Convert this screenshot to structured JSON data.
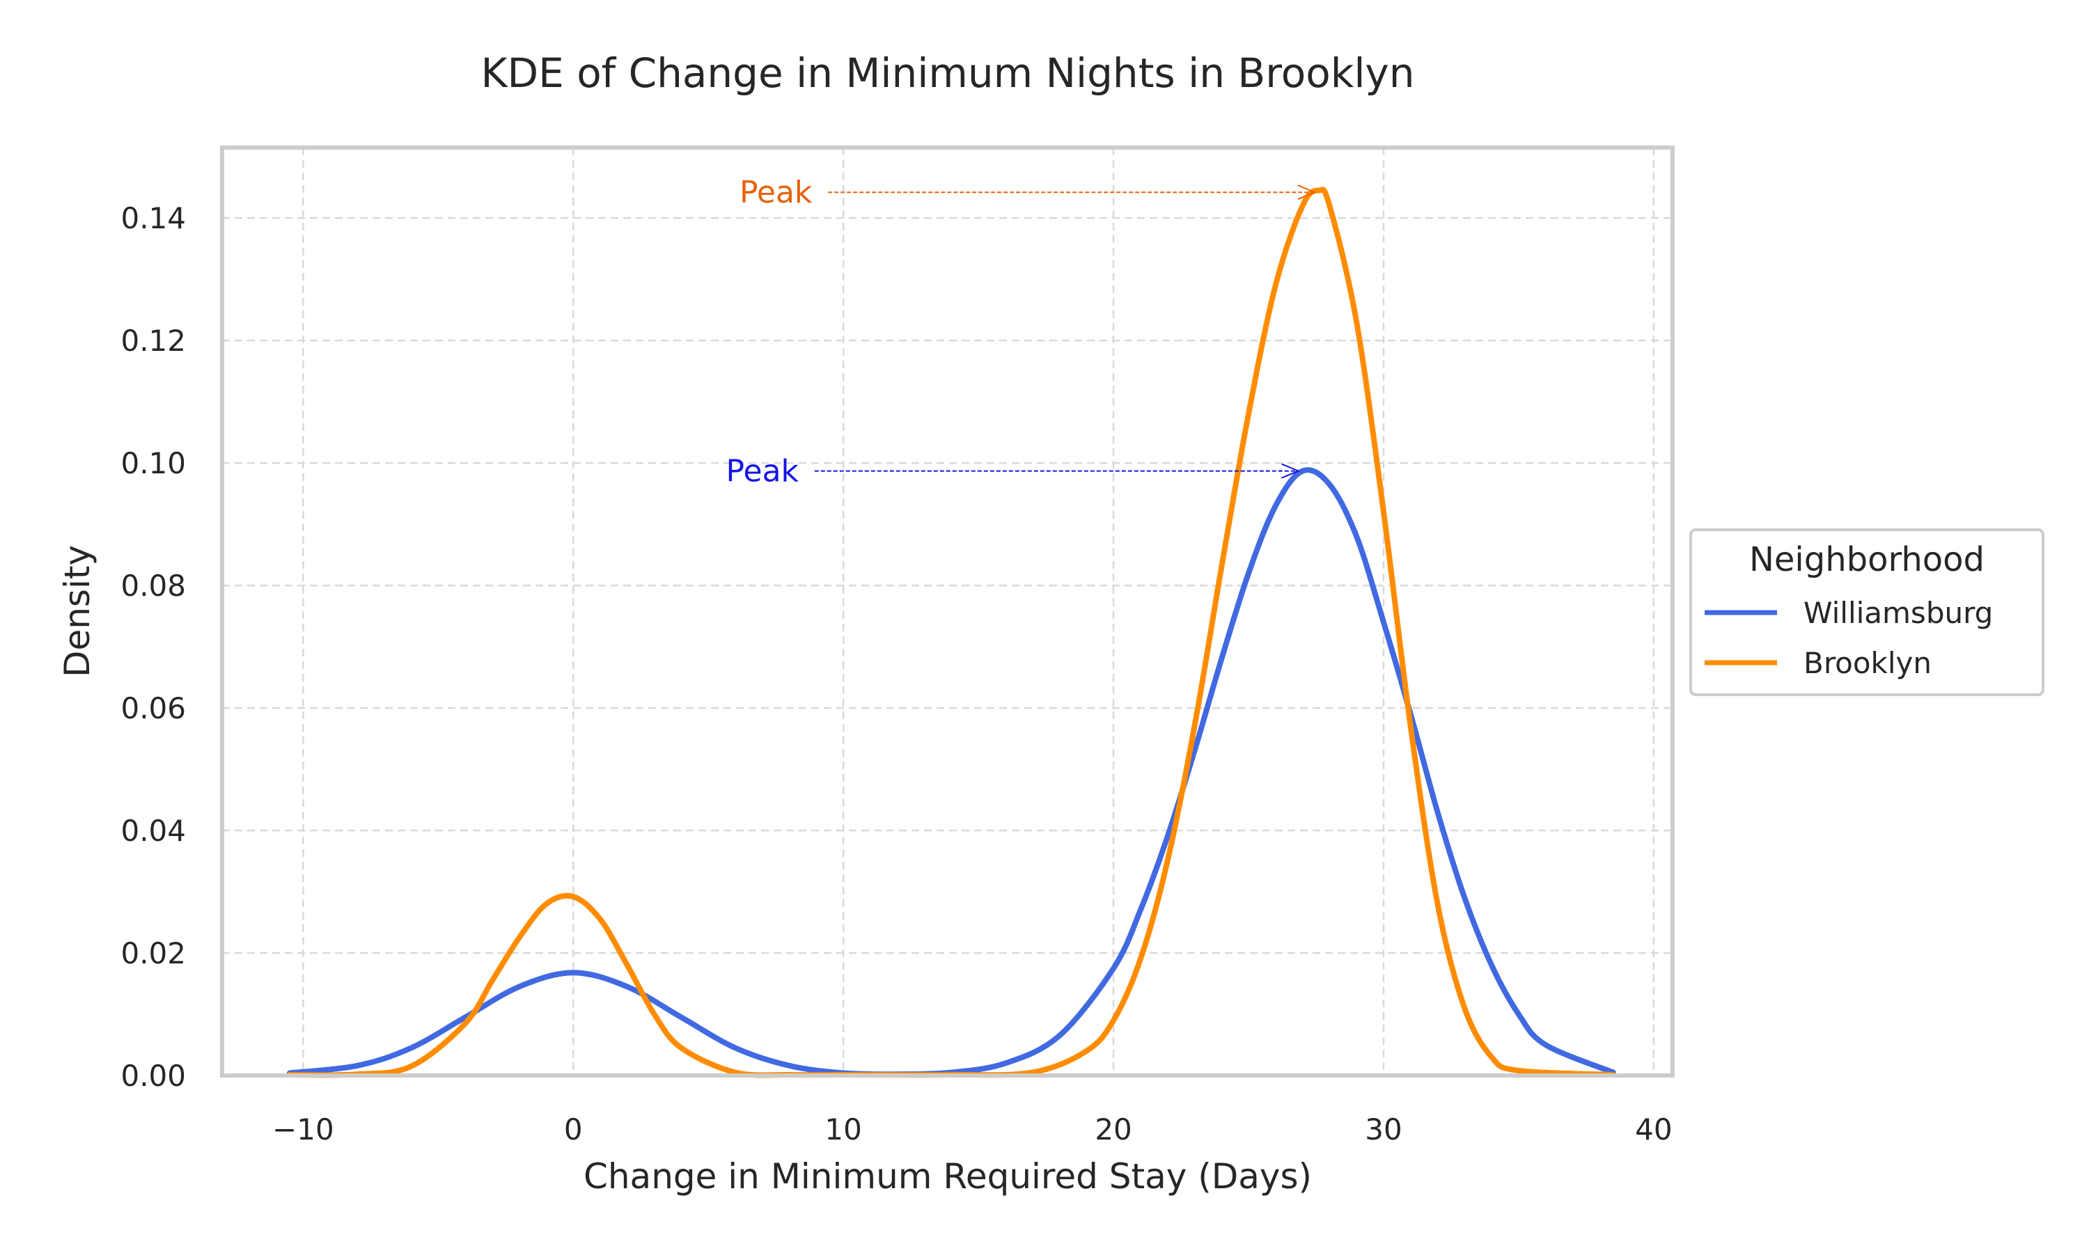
{
  "chart_data": {
    "type": "line",
    "title": "KDE of Change in Minimum Nights in Brooklyn",
    "xlabel": "Change in Minimum Required Stay (Days)",
    "ylabel": "Density",
    "xlim": [
      -13,
      40.7
    ],
    "ylim": [
      0,
      0.1515
    ],
    "xticks": [
      -10,
      0,
      10,
      20,
      30,
      40
    ],
    "xtick_labels": [
      "−10",
      "0",
      "10",
      "20",
      "30",
      "40"
    ],
    "yticks": [
      0,
      0.02,
      0.04,
      0.06,
      0.08,
      0.1,
      0.12,
      0.14
    ],
    "ytick_labels": [
      "0.00",
      "0.02",
      "0.04",
      "0.06",
      "0.08",
      "0.10",
      "0.12",
      "0.14"
    ],
    "grid": true,
    "legend": {
      "title": "Neighborhood",
      "placement": "center-right-outside"
    },
    "series": [
      {
        "name": "Williamsburg",
        "color": "#4169e1",
        "x": [
          -10.5,
          -8,
          -6,
          -4,
          -2,
          0,
          2,
          4,
          6,
          8,
          10,
          12,
          14,
          16,
          18,
          20,
          21,
          22,
          23,
          24,
          25,
          26,
          27,
          28,
          29,
          30,
          31,
          32,
          33,
          34,
          35,
          36,
          38.5
        ],
        "y": [
          0.0004,
          0.0016,
          0.0045,
          0.0095,
          0.0145,
          0.0168,
          0.0145,
          0.0095,
          0.0045,
          0.0016,
          0.0004,
          0.0002,
          0.0005,
          0.002,
          0.0065,
          0.0175,
          0.027,
          0.039,
          0.053,
          0.068,
          0.082,
          0.093,
          0.0987,
          0.0965,
          0.088,
          0.074,
          0.059,
          0.043,
          0.029,
          0.018,
          0.01,
          0.005,
          0.0005
        ]
      },
      {
        "name": "Brooklyn",
        "color": "#ff8c00",
        "x": [
          -10.5,
          -8,
          -6,
          -4,
          -3,
          -2,
          -1,
          0,
          1,
          2,
          3,
          4,
          6,
          8,
          10,
          14,
          17,
          19,
          20,
          21,
          22,
          23,
          24,
          25,
          26,
          27,
          27.6,
          28,
          29,
          30,
          31,
          32,
          33,
          34,
          35,
          38.5
        ],
        "y": [
          0.0,
          0.0002,
          0.0015,
          0.0085,
          0.0155,
          0.0225,
          0.028,
          0.0292,
          0.0255,
          0.018,
          0.01,
          0.0045,
          0.0005,
          0.0,
          0.0,
          0.0,
          0.0005,
          0.004,
          0.009,
          0.019,
          0.035,
          0.057,
          0.083,
          0.108,
          0.129,
          0.142,
          0.1445,
          0.142,
          0.123,
          0.092,
          0.057,
          0.028,
          0.011,
          0.003,
          0.0008,
          0.0
        ]
      }
    ],
    "annotations": [
      {
        "text": "Peak",
        "color": "#e8620a",
        "x": 27.6,
        "y": 0.1442,
        "text_x": 7.5,
        "text_y": 0.1442
      },
      {
        "text": "Peak",
        "color": "#1515e6",
        "x": 27.0,
        "y": 0.0987,
        "text_x": 7.0,
        "text_y": 0.0987
      }
    ]
  }
}
